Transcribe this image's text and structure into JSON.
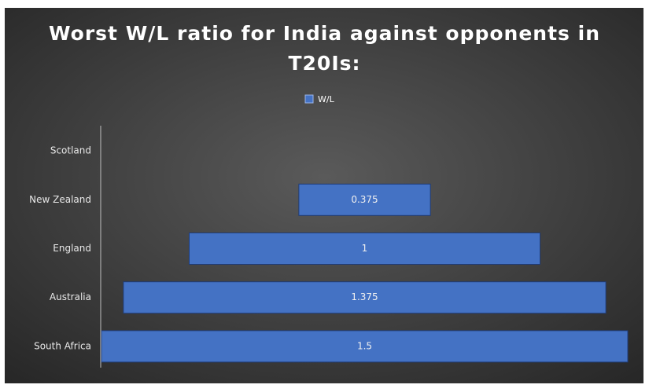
{
  "chart_data": {
    "type": "funnel",
    "title": "Worst W/L ratio for India against opponents in T20Is:",
    "categories": [
      "Scotland",
      "New Zealand",
      "England",
      "Australia",
      "South Africa"
    ],
    "series": [
      {
        "name": "W/L",
        "color": "#4472c4",
        "values": [
          null,
          0.375,
          1,
          1.375,
          1.5
        ]
      }
    ],
    "legend": "top"
  }
}
